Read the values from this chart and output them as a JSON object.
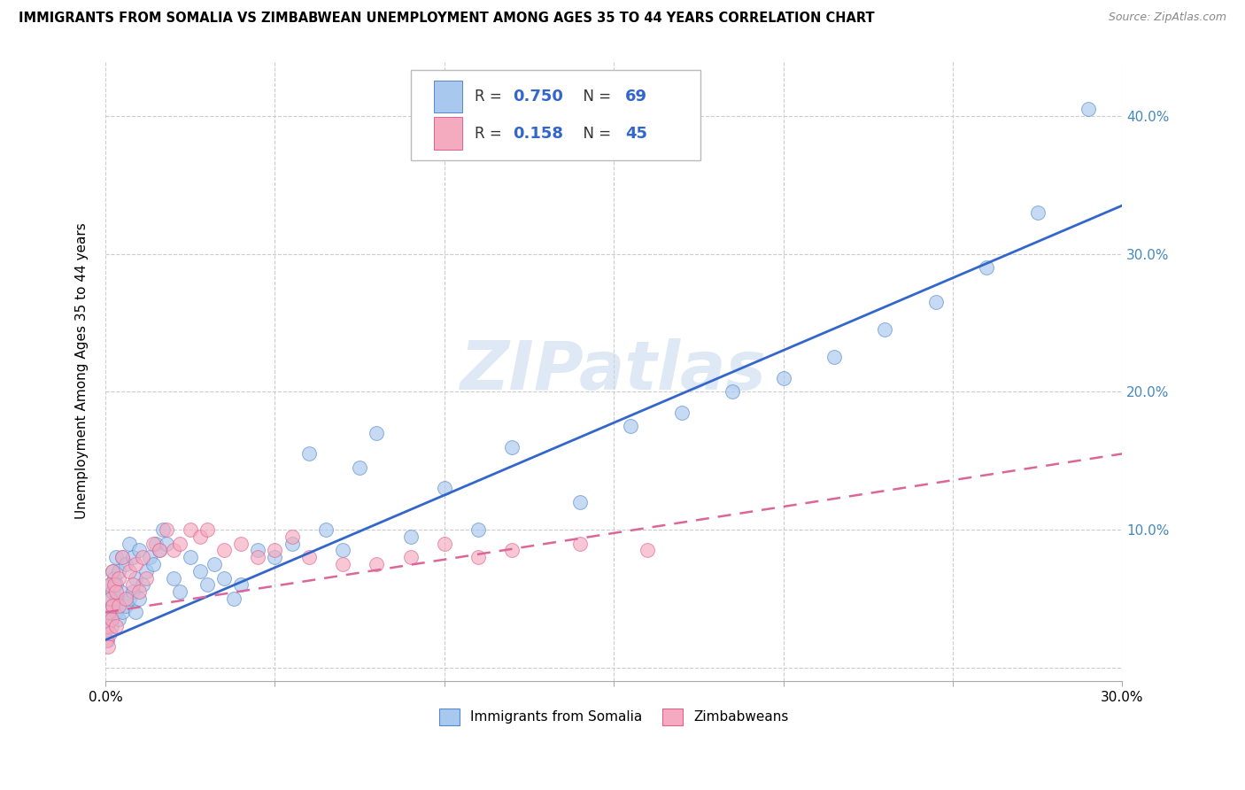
{
  "title": "IMMIGRANTS FROM SOMALIA VS ZIMBABWEAN UNEMPLOYMENT AMONG AGES 35 TO 44 YEARS CORRELATION CHART",
  "source": "Source: ZipAtlas.com",
  "ylabel": "Unemployment Among Ages 35 to 44 years",
  "xlim": [
    0.0,
    0.3
  ],
  "ylim": [
    -0.01,
    0.44
  ],
  "xticks": [
    0.0,
    0.05,
    0.1,
    0.15,
    0.2,
    0.25,
    0.3
  ],
  "yticks": [
    0.0,
    0.1,
    0.2,
    0.3,
    0.4
  ],
  "yticklabels_right": [
    "",
    "10.0%",
    "20.0%",
    "30.0%",
    "40.0%"
  ],
  "somalia_R": "0.750",
  "somalia_N": "69",
  "zimbabwe_R": "0.158",
  "zimbabwe_N": "45",
  "somalia_color": "#A8C8EE",
  "zimbabwe_color": "#F4AABF",
  "somalia_edge_color": "#5588CC",
  "zimbabwe_edge_color": "#E06090",
  "trend_somalia_color": "#3366CC",
  "trend_zimbabwe_color": "#DD6699",
  "watermark": "ZIPatlas",
  "somalia_x": [
    0.0005,
    0.0008,
    0.001,
    0.0012,
    0.0015,
    0.0018,
    0.002,
    0.002,
    0.0022,
    0.0025,
    0.003,
    0.003,
    0.003,
    0.0035,
    0.004,
    0.004,
    0.0045,
    0.005,
    0.005,
    0.006,
    0.006,
    0.007,
    0.007,
    0.008,
    0.008,
    0.009,
    0.009,
    0.01,
    0.01,
    0.011,
    0.012,
    0.013,
    0.014,
    0.015,
    0.016,
    0.017,
    0.018,
    0.02,
    0.022,
    0.025,
    0.028,
    0.03,
    0.032,
    0.035,
    0.038,
    0.04,
    0.045,
    0.05,
    0.055,
    0.06,
    0.065,
    0.07,
    0.075,
    0.08,
    0.09,
    0.1,
    0.11,
    0.12,
    0.14,
    0.155,
    0.17,
    0.185,
    0.2,
    0.215,
    0.23,
    0.245,
    0.26,
    0.275,
    0.29
  ],
  "somalia_y": [
    0.02,
    0.04,
    0.035,
    0.05,
    0.06,
    0.03,
    0.045,
    0.07,
    0.055,
    0.065,
    0.04,
    0.06,
    0.08,
    0.05,
    0.035,
    0.07,
    0.055,
    0.04,
    0.08,
    0.045,
    0.075,
    0.05,
    0.09,
    0.055,
    0.08,
    0.04,
    0.065,
    0.05,
    0.085,
    0.06,
    0.07,
    0.08,
    0.075,
    0.09,
    0.085,
    0.1,
    0.09,
    0.065,
    0.055,
    0.08,
    0.07,
    0.06,
    0.075,
    0.065,
    0.05,
    0.06,
    0.085,
    0.08,
    0.09,
    0.155,
    0.1,
    0.085,
    0.145,
    0.17,
    0.095,
    0.13,
    0.1,
    0.16,
    0.12,
    0.175,
    0.185,
    0.2,
    0.21,
    0.225,
    0.245,
    0.265,
    0.29,
    0.33,
    0.405
  ],
  "zimbabwe_x": [
    0.0003,
    0.0005,
    0.0007,
    0.001,
    0.001,
    0.0012,
    0.0015,
    0.0018,
    0.002,
    0.002,
    0.0025,
    0.003,
    0.003,
    0.004,
    0.004,
    0.005,
    0.006,
    0.007,
    0.008,
    0.009,
    0.01,
    0.011,
    0.012,
    0.014,
    0.016,
    0.018,
    0.02,
    0.022,
    0.025,
    0.028,
    0.03,
    0.035,
    0.04,
    0.045,
    0.05,
    0.055,
    0.06,
    0.07,
    0.08,
    0.09,
    0.1,
    0.11,
    0.12,
    0.14,
    0.16
  ],
  "zimbabwe_y": [
    0.02,
    0.03,
    0.015,
    0.04,
    0.06,
    0.025,
    0.05,
    0.035,
    0.045,
    0.07,
    0.06,
    0.03,
    0.055,
    0.045,
    0.065,
    0.08,
    0.05,
    0.07,
    0.06,
    0.075,
    0.055,
    0.08,
    0.065,
    0.09,
    0.085,
    0.1,
    0.085,
    0.09,
    0.1,
    0.095,
    0.1,
    0.085,
    0.09,
    0.08,
    0.085,
    0.095,
    0.08,
    0.075,
    0.075,
    0.08,
    0.09,
    0.08,
    0.085,
    0.09,
    0.085
  ],
  "trend_somalia_x0": 0.0,
  "trend_somalia_y0": 0.02,
  "trend_somalia_x1": 0.3,
  "trend_somalia_y1": 0.335,
  "trend_zimbabwe_x0": 0.0,
  "trend_zimbabwe_y0": 0.04,
  "trend_zimbabwe_x1": 0.3,
  "trend_zimbabwe_y1": 0.155
}
